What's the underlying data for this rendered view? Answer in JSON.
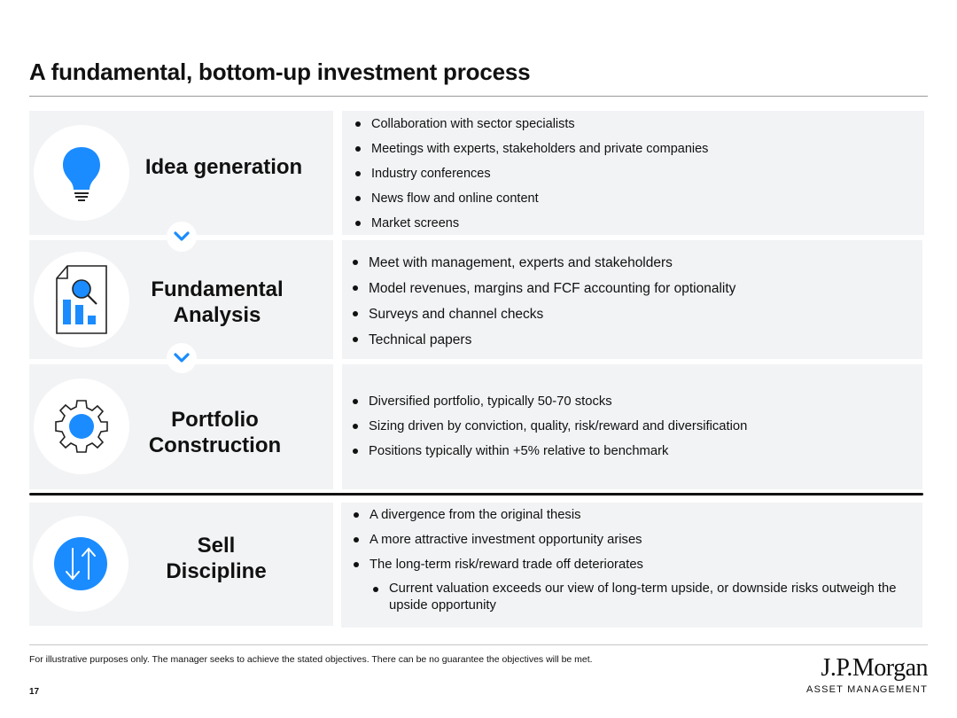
{
  "page": {
    "title": "A fundamental, bottom-up investment process",
    "disclaimer": "For illustrative purposes only. The manager seeks to achieve the stated objectives. There can be no guarantee the objectives will be met.",
    "page_number": "17",
    "brand": {
      "name": "J.P.Morgan",
      "sub": "ASSET MANAGEMENT"
    }
  },
  "colors": {
    "accent": "#1a8cff",
    "panel_bg": "#f2f3f5",
    "text": "#111111"
  },
  "steps": [
    {
      "label": "Idea generation",
      "icon": "lightbulb-icon",
      "bullets": [
        "Collaboration with sector specialists",
        "Meetings with experts, stakeholders and private companies",
        "Industry conferences",
        "News flow and online content",
        "Market screens"
      ]
    },
    {
      "label_lines": [
        "Fundamental",
        "Analysis"
      ],
      "icon": "report-magnifier-icon",
      "bullets": [
        "Meet with management, experts and stakeholders",
        "Model revenues, margins and FCF accounting for optionality",
        "Surveys and channel checks",
        "Technical papers"
      ]
    },
    {
      "label_lines": [
        "Portfolio",
        "Construction"
      ],
      "icon": "gear-icon",
      "bullets": [
        "Diversified portfolio, typically 50-70 stocks",
        "Sizing driven by conviction, quality, risk/reward and diversification",
        "Positions typically within +5% relative to benchmark"
      ]
    },
    {
      "label_lines": [
        "Sell",
        "Discipline"
      ],
      "icon": "up-down-arrows-icon",
      "bullets": [
        "A divergence from the original thesis",
        "A more attractive investment opportunity arises",
        "The long-term risk/reward trade off deteriorates"
      ],
      "sub_bullets": [
        "Current valuation exceeds our view of long-term upside, or downside risks outweigh the upside opportunity"
      ]
    }
  ]
}
